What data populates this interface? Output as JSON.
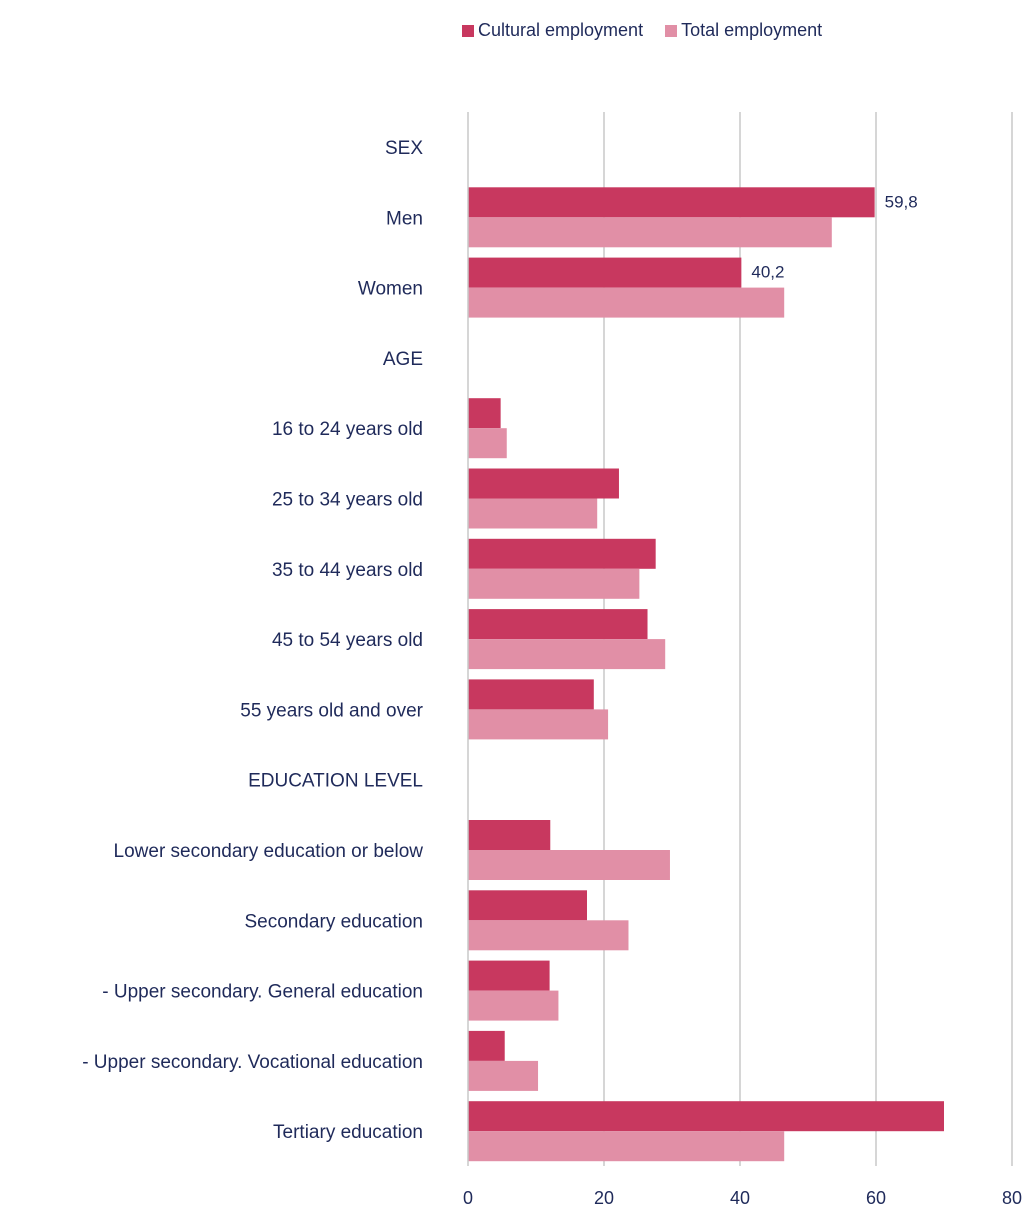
{
  "chart_data": {
    "type": "bar",
    "orientation": "horizontal",
    "title": "",
    "xlabel": "",
    "ylabel": "",
    "xlim": [
      0,
      80
    ],
    "xticks": [
      0,
      20,
      40,
      60,
      80
    ],
    "grid": true,
    "legend_position": "top",
    "categories": [
      "SEX",
      "Men",
      "Women",
      "AGE",
      "16 to 24 years old",
      "25 to 34 years old",
      "35 to 44 years old",
      "45 to 54 years old",
      "55 years old and over",
      "EDUCATION LEVEL",
      "Lower secondary education or below",
      "Secondary education",
      "- Upper secondary. General education",
      "- Upper secondary. Vocational education",
      "Tertiary education"
    ],
    "series": [
      {
        "name": "Cultural employment",
        "color": "#c8385f",
        "values": [
          null,
          59.8,
          40.2,
          null,
          4.8,
          22.2,
          27.6,
          26.4,
          18.5,
          null,
          12.1,
          17.5,
          12.0,
          5.4,
          70.0
        ]
      },
      {
        "name": "Total employment",
        "color": "#e18fa6",
        "values": [
          null,
          53.5,
          46.5,
          null,
          5.7,
          19.0,
          25.2,
          29.0,
          20.6,
          null,
          29.7,
          23.6,
          13.3,
          10.3,
          46.5
        ]
      }
    ],
    "data_labels": [
      {
        "series": 0,
        "category": 1,
        "text": "59,8"
      },
      {
        "series": 0,
        "category": 2,
        "text": "40,2"
      }
    ]
  }
}
